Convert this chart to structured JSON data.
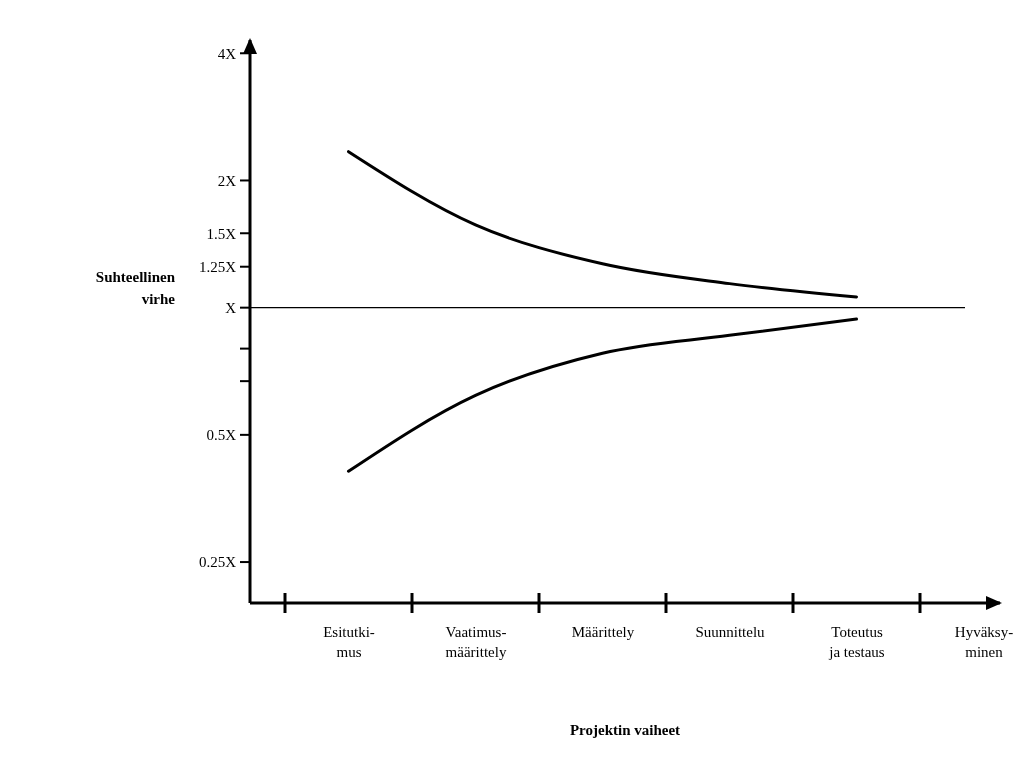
{
  "chart_data": {
    "type": "line",
    "xlabel": "Projektin vaiheet",
    "ylabel": "Suhteellinen virhe",
    "log": "y",
    "grid": false,
    "marker": "none",
    "line_style": "solid",
    "categories": [
      "Esitutki-\nmus",
      "Vaatimus-\nmäärittely",
      "Määrittely",
      "Suunnittelu",
      "Toteutus\nja testaus",
      "Hyväksy-\nminen"
    ],
    "ylim": [
      0.2,
      4.3
    ],
    "yticks": [
      {
        "value": 0.25,
        "label": "0.25X"
      },
      {
        "value": 0.5,
        "label": "0.5X"
      },
      {
        "value": 0.67,
        "label": null
      },
      {
        "value": 0.8,
        "label": null
      },
      {
        "value": 1,
        "label": "X"
      },
      {
        "value": 1.25,
        "label": "1.25X"
      },
      {
        "value": 1.5,
        "label": "1.5X"
      },
      {
        "value": 2,
        "label": "2X"
      },
      {
        "value": 4,
        "label": "4X"
      }
    ],
    "ref_lines": [
      {
        "axis": "y",
        "value": 1,
        "color": "#000000"
      }
    ],
    "series": [
      {
        "color": "#000000",
        "values": [
          2.34,
          1.57,
          1.27,
          1.14,
          1.06,
          null
        ]
      },
      {
        "color": "#000000",
        "values": [
          0.41,
          0.62,
          0.78,
          0.86,
          0.94,
          null
        ]
      }
    ]
  }
}
